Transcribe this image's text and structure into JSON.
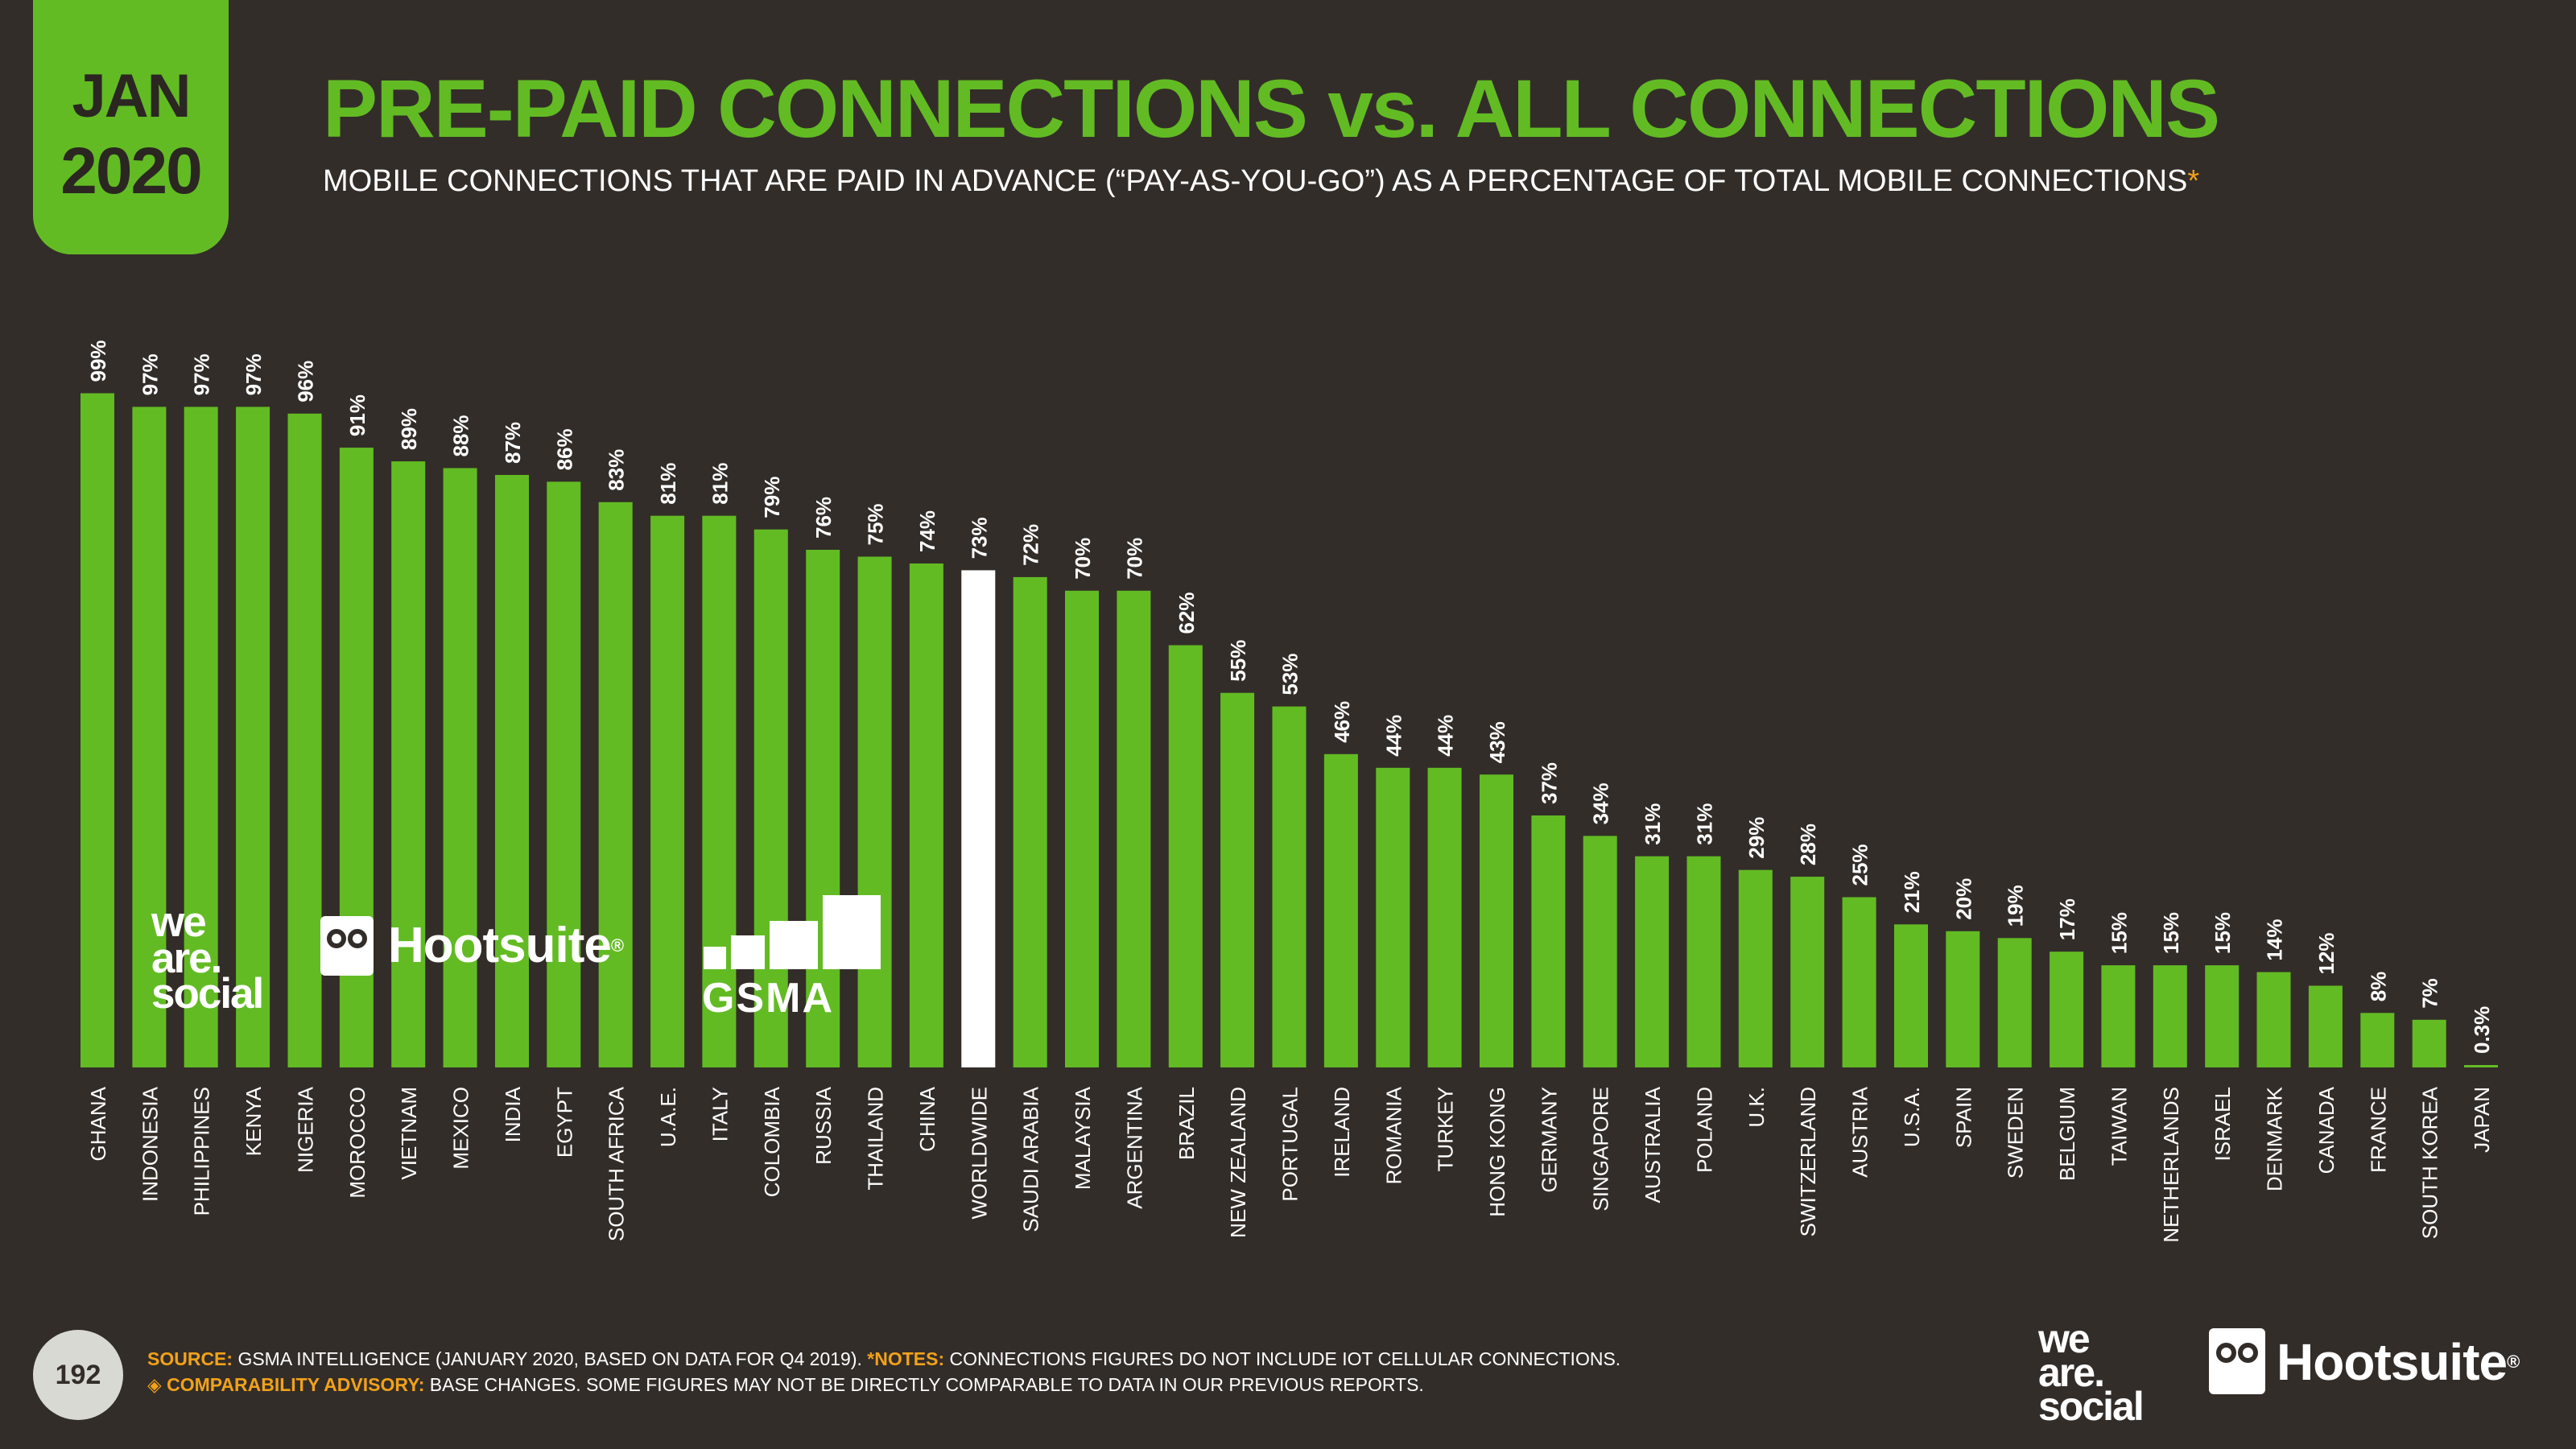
{
  "date_badge": {
    "month": "JAN",
    "year": "2020"
  },
  "header": {
    "title": "PRE-PAID CONNECTIONS vs. ALL CONNECTIONS",
    "subtitle": "MOBILE CONNECTIONS THAT ARE PAID IN ADVANCE (“PAY-AS-YOU-GO”) AS A PERCENTAGE OF TOTAL MOBILE CONNECTIONS",
    "subtitle_mark": "*"
  },
  "colors": {
    "background": "#332d29",
    "accent": "#62bb23",
    "highlight": "#ffffff",
    "label_orange": "#f1a21a"
  },
  "chart_data": {
    "type": "bar",
    "title": "PRE-PAID CONNECTIONS vs. ALL CONNECTIONS",
    "unit": "%",
    "ylim": [
      0,
      100
    ],
    "grid": false,
    "highlight_category": "WORLDWIDE",
    "categories": [
      "GHANA",
      "INDONESIA",
      "PHILIPPINES",
      "KENYA",
      "NIGERIA",
      "MOROCCO",
      "VIETNAM",
      "MEXICO",
      "INDIA",
      "EGYPT",
      "SOUTH AFRICA",
      "U.A.E.",
      "ITALY",
      "COLOMBIA",
      "RUSSIA",
      "THAILAND",
      "CHINA",
      "WORLDWIDE",
      "SAUDI ARABIA",
      "MALAYSIA",
      "ARGENTINA",
      "BRAZIL",
      "NEW ZEALAND",
      "PORTUGAL",
      "IRELAND",
      "ROMANIA",
      "TURKEY",
      "HONG KONG",
      "GERMANY",
      "SINGAPORE",
      "AUSTRALIA",
      "POLAND",
      "U.K.",
      "SWITZERLAND",
      "AUSTRIA",
      "U.S.A.",
      "SPAIN",
      "SWEDEN",
      "BELGIUM",
      "TAIWAN",
      "NETHERLANDS",
      "ISRAEL",
      "DENMARK",
      "CANADA",
      "FRANCE",
      "SOUTH KOREA",
      "JAPAN"
    ],
    "values": [
      99,
      97,
      97,
      97,
      96,
      91,
      89,
      88,
      87,
      86,
      83,
      81,
      81,
      79,
      76,
      75,
      74,
      73,
      72,
      70,
      70,
      62,
      55,
      53,
      46,
      44,
      44,
      43,
      37,
      34,
      31,
      31,
      29,
      28,
      25,
      21,
      20,
      19,
      17,
      15,
      15,
      15,
      14,
      12,
      8,
      7,
      0.3
    ],
    "value_labels": [
      "99%",
      "97%",
      "97%",
      "97%",
      "96%",
      "91%",
      "89%",
      "88%",
      "87%",
      "86%",
      "83%",
      "81%",
      "81%",
      "79%",
      "76%",
      "75%",
      "74%",
      "73%",
      "72%",
      "70%",
      "70%",
      "62%",
      "55%",
      "53%",
      "46%",
      "44%",
      "44%",
      "43%",
      "37%",
      "34%",
      "31%",
      "31%",
      "29%",
      "28%",
      "25%",
      "21%",
      "20%",
      "19%",
      "17%",
      "15%",
      "15%",
      "15%",
      "14%",
      "12%",
      "8%",
      "7%",
      "0.3%"
    ]
  },
  "logos": {
    "we_are_social": [
      "we",
      "are.",
      "social"
    ],
    "hootsuite": "Hootsuite",
    "registered": "®",
    "gsma": "GSMA"
  },
  "footer": {
    "page_number": "192",
    "source_label": "SOURCE:",
    "source_text": "GSMA INTELLIGENCE (JANUARY 2020, BASED ON DATA FOR Q4 2019).",
    "notes_label": "*NOTES:",
    "notes_text": "CONNECTIONS FIGURES DO NOT INCLUDE IOT CELLULAR CONNECTIONS.",
    "advisory_icon": "◈",
    "advisory_label": "COMPARABILITY ADVISORY:",
    "advisory_text": "BASE CHANGES. SOME FIGURES MAY NOT BE DIRECTLY COMPARABLE TO DATA IN OUR PREVIOUS REPORTS."
  }
}
